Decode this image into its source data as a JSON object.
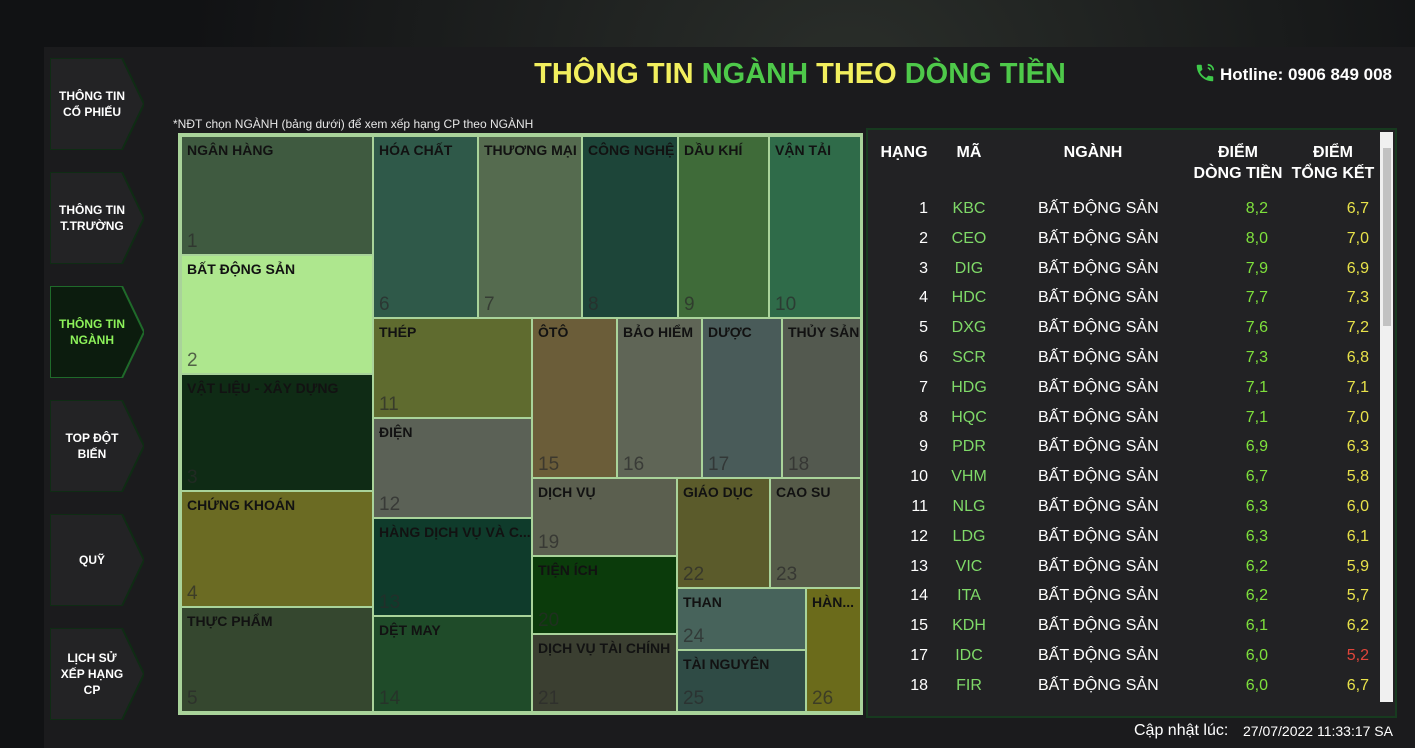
{
  "header": {
    "title_parts": [
      "THÔNG TIN",
      "NGÀNH",
      "THEO",
      "DÒNG TIỀN"
    ],
    "hotline": "Hotline: 0906 849 008"
  },
  "nav": [
    "THÔNG TIN CỔ PHIẾU",
    "THÔNG TIN T.TRƯỜNG",
    "THÔNG TIN NGÀNH",
    "TOP ĐỘT BIẾN",
    "QUỸ",
    "LỊCH SỬ XẾP HẠNG CP"
  ],
  "nav_active": 2,
  "note": "*NĐT chọn NGÀNH (bảng dưới) để xem xếp hạng CP theo NGÀNH",
  "treemap": [
    {
      "label": "NGÂN HÀNG",
      "rank": 1,
      "color": "#3f5a40"
    },
    {
      "label": "BẤT ĐỘNG SẢN",
      "rank": 2,
      "color": "#aee78e"
    },
    {
      "label": "VẬT LIỆU - XÂY DỰNG",
      "rank": 3,
      "color": "#0f2b15"
    },
    {
      "label": "CHỨNG KHOÁN",
      "rank": 4,
      "color": "#6b6b23"
    },
    {
      "label": "THỰC PHẨM",
      "rank": 5,
      "color": "#35472f"
    },
    {
      "label": "HÓA CHẤT",
      "rank": 6,
      "color": "#2f5949"
    },
    {
      "label": "THƯƠNG MẠI",
      "rank": 7,
      "color": "#556b4f"
    },
    {
      "label": "CÔNG NGHỆ",
      "rank": 8,
      "color": "#1d4539"
    },
    {
      "label": "DẦU KHÍ",
      "rank": 9,
      "color": "#3f6b39"
    },
    {
      "label": "VẬN TẢI",
      "rank": 10,
      "color": "#2f6b49"
    },
    {
      "label": "THÉP",
      "rank": 11,
      "color": "#5f6b2f"
    },
    {
      "label": "ĐIỆN",
      "rank": 12,
      "color": "#5b6156"
    },
    {
      "label": "HÀNG DỊCH VỤ VÀ C...",
      "rank": 13,
      "color": "#0f3b2b"
    },
    {
      "label": "DỆT MAY",
      "rank": 14,
      "color": "#1f4b29"
    },
    {
      "label": "ÔTÔ",
      "rank": 15,
      "color": "#6b5d39"
    },
    {
      "label": "BẢO HIỂM",
      "rank": 16,
      "color": "#5f6556"
    },
    {
      "label": "DƯỢC",
      "rank": 17,
      "color": "#495b59"
    },
    {
      "label": "THỦY SẢN",
      "rank": 18,
      "color": "#53594f"
    },
    {
      "label": "DỊCH VỤ",
      "rank": 19,
      "color": "#5b5f4f"
    },
    {
      "label": "TIỆN ÍCH",
      "rank": 20,
      "color": "#0b3b0b"
    },
    {
      "label": "DỊCH VỤ TÀI CHÍNH",
      "rank": 21,
      "color": "#3b3f31"
    },
    {
      "label": "GIÁO DỤC",
      "rank": 22,
      "color": "#5b5b2b"
    },
    {
      "label": "CAO SU",
      "rank": 23,
      "color": "#565b49"
    },
    {
      "label": "THAN",
      "rank": 24,
      "color": "#47635b"
    },
    {
      "label": "TÀI NGUYÊN",
      "rank": 25,
      "color": "#2f4b45"
    },
    {
      "label": "HÀN...",
      "rank": 26,
      "color": "#6b6b1b"
    }
  ],
  "table": {
    "headers": [
      [
        "HẠNG"
      ],
      [
        "MÃ"
      ],
      [
        "NGÀNH"
      ],
      [
        "ĐIỂM",
        "DÒNG TIỀN"
      ],
      [
        "ĐIỂM",
        "TỔNG KẾT"
      ]
    ],
    "rows": [
      [
        1,
        "KBC",
        "BẤT ĐỘNG SẢN",
        "8,2",
        "6,7"
      ],
      [
        2,
        "CEO",
        "BẤT ĐỘNG SẢN",
        "8,0",
        "7,0"
      ],
      [
        3,
        "DIG",
        "BẤT ĐỘNG SẢN",
        "7,9",
        "6,9"
      ],
      [
        4,
        "HDC",
        "BẤT ĐỘNG SẢN",
        "7,7",
        "7,3"
      ],
      [
        5,
        "DXG",
        "BẤT ĐỘNG SẢN",
        "7,6",
        "7,2"
      ],
      [
        6,
        "SCR",
        "BẤT ĐỘNG SẢN",
        "7,3",
        "6,8"
      ],
      [
        7,
        "HDG",
        "BẤT ĐỘNG SẢN",
        "7,1",
        "7,1"
      ],
      [
        8,
        "HQC",
        "BẤT ĐỘNG SẢN",
        "7,1",
        "7,0"
      ],
      [
        9,
        "PDR",
        "BẤT ĐỘNG SẢN",
        "6,9",
        "6,3"
      ],
      [
        10,
        "VHM",
        "BẤT ĐỘNG SẢN",
        "6,7",
        "5,8"
      ],
      [
        11,
        "NLG",
        "BẤT ĐỘNG SẢN",
        "6,3",
        "6,0"
      ],
      [
        12,
        "LDG",
        "BẤT ĐỘNG SẢN",
        "6,3",
        "6,1"
      ],
      [
        13,
        "VIC",
        "BẤT ĐỘNG SẢN",
        "6,2",
        "5,9"
      ],
      [
        14,
        "ITA",
        "BẤT ĐỘNG SẢN",
        "6,2",
        "5,7"
      ],
      [
        15,
        "KDH",
        "BẤT ĐỘNG SẢN",
        "6,1",
        "6,2"
      ],
      [
        17,
        "IDC",
        "BẤT ĐỘNG SẢN",
        "6,0",
        "5,2"
      ],
      [
        18,
        "FIR",
        "BẤT ĐỘNG SẢN",
        "6,0",
        "6,7"
      ]
    ],
    "score_colors": [
      "#e8e24a",
      "#e8e24a",
      "#e8e24a",
      "#e8e24a",
      "#e8e24a",
      "#e8e24a",
      "#e8e24a",
      "#e8e24a",
      "#e8e24a",
      "#e8e24a",
      "#e8e24a",
      "#e8e24a",
      "#e8e24a",
      "#e8e24a",
      "#e8e24a",
      "#e0453a",
      "#e8e24a"
    ]
  },
  "footer": {
    "label": "Cập nhật lúc:",
    "timestamp": "27/07/2022 11:33:17 SA"
  }
}
